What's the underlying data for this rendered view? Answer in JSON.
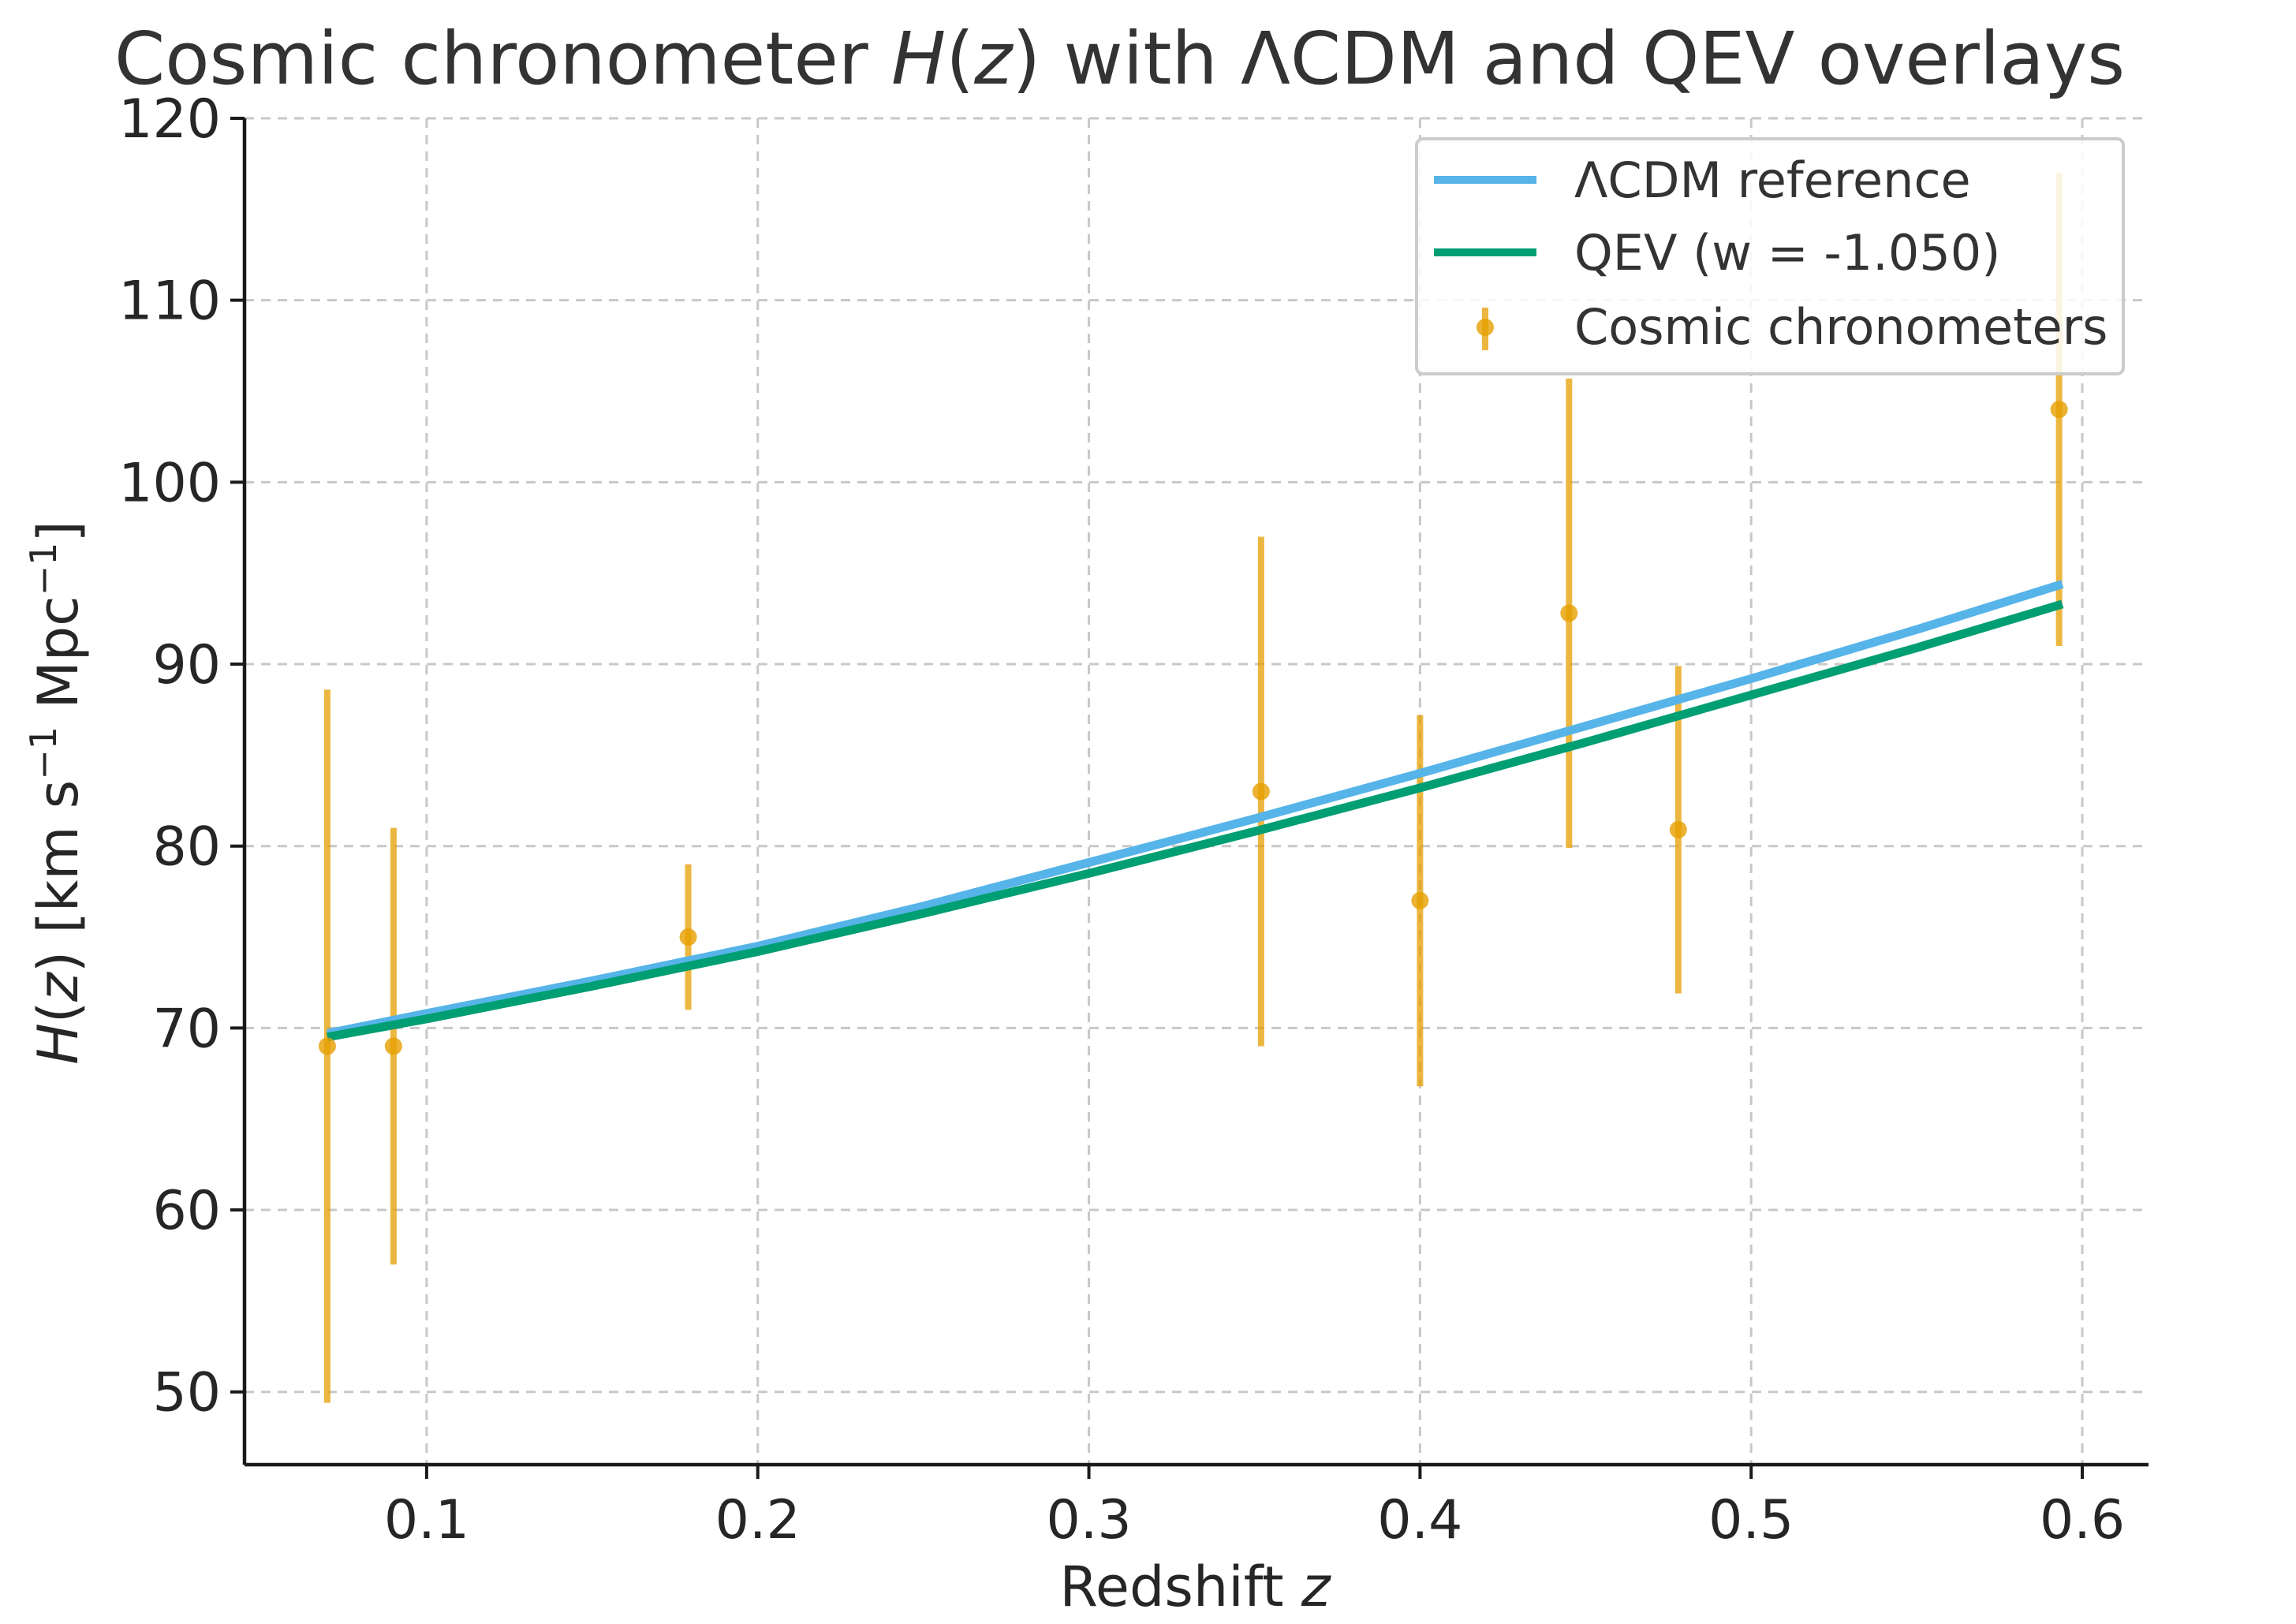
{
  "chart_data": {
    "type": "line",
    "title_parts": [
      "Cosmic chronometer ",
      "H",
      "(",
      "z",
      ") with ΛCDM and QEV overlays"
    ],
    "xlabel_parts": [
      "Redshift ",
      "z"
    ],
    "ylabel_parts": [
      "H",
      "(",
      "z",
      ") [km s",
      "−1",
      " Mpc",
      "−1",
      "]"
    ],
    "xlim": [
      0.045,
      0.62
    ],
    "ylim": [
      46,
      120
    ],
    "xticks": [
      0.1,
      0.2,
      0.3,
      0.4,
      0.5,
      0.6
    ],
    "xtick_labels": [
      "0.1",
      "0.2",
      "0.3",
      "0.4",
      "0.5",
      "0.6"
    ],
    "yticks": [
      50,
      60,
      70,
      80,
      90,
      100,
      110,
      120
    ],
    "ytick_labels": [
      "50",
      "60",
      "70",
      "80",
      "90",
      "100",
      "110",
      "120"
    ],
    "grid": true,
    "legend_position": "top-right",
    "series": [
      {
        "name": "ΛCDM reference",
        "kind": "line",
        "color": "#56b4e9",
        "x": [
          0.07,
          0.1,
          0.15,
          0.2,
          0.25,
          0.3,
          0.35,
          0.4,
          0.45,
          0.5,
          0.55,
          0.594
        ],
        "y": [
          69.7,
          70.8,
          72.6,
          74.5,
          76.7,
          79.1,
          81.5,
          84.0,
          86.6,
          89.2,
          91.9,
          94.4
        ]
      },
      {
        "name": "QEV (w = -1.050)",
        "kind": "line",
        "color": "#009e73",
        "x": [
          0.07,
          0.1,
          0.15,
          0.2,
          0.25,
          0.3,
          0.35,
          0.4,
          0.45,
          0.5,
          0.55,
          0.594
        ],
        "y": [
          69.5,
          70.5,
          72.3,
          74.2,
          76.3,
          78.5,
          80.8,
          83.2,
          85.7,
          88.3,
          90.9,
          93.3
        ]
      },
      {
        "name": "Cosmic chronometers",
        "kind": "errorbar",
        "color": "#e69f00",
        "points": [
          {
            "x": 0.07,
            "y": 69.0,
            "err": 19.6
          },
          {
            "x": 0.09,
            "y": 69.0,
            "err": 12.0
          },
          {
            "x": 0.179,
            "y": 75.0,
            "err": 4.0
          },
          {
            "x": 0.352,
            "y": 83.0,
            "err": 14.0
          },
          {
            "x": 0.4,
            "y": 77.0,
            "err": 10.2
          },
          {
            "x": 0.445,
            "y": 92.8,
            "err": 12.9
          },
          {
            "x": 0.478,
            "y": 80.9,
            "err": 9.0
          },
          {
            "x": 0.593,
            "y": 104.0,
            "err": 13.0
          }
        ]
      }
    ]
  }
}
